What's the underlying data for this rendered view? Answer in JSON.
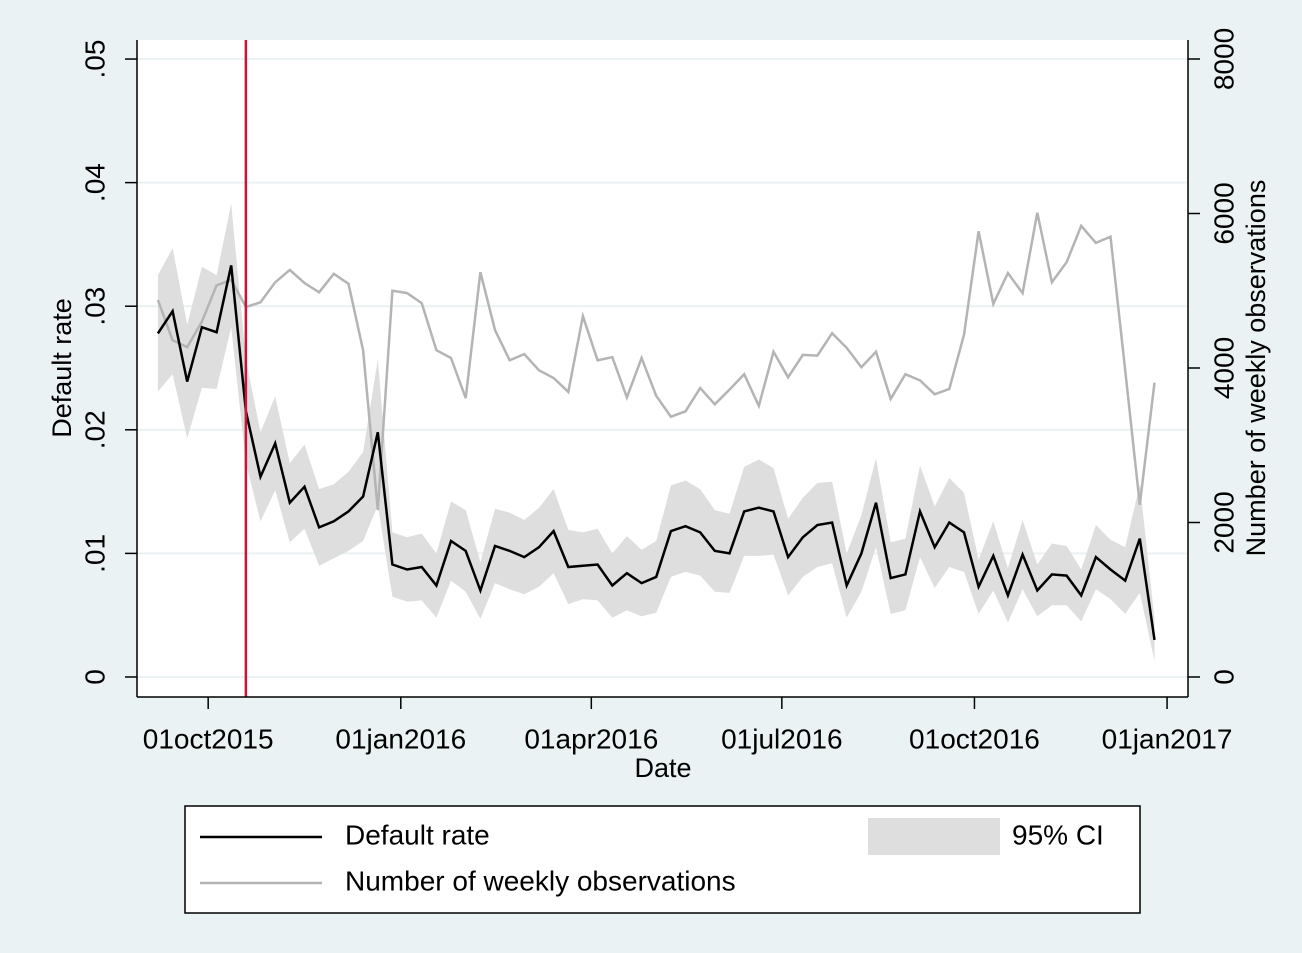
{
  "chart_data": {
    "type": "line",
    "xlabel": "Date",
    "ylabel": "Default rate",
    "y2label": "Number of weekly observations",
    "x": [
      20338,
      20345,
      20352,
      20359,
      20366,
      20373,
      20380,
      20387,
      20394,
      20401,
      20408,
      20415,
      20422,
      20429,
      20436,
      20443,
      20450,
      20457,
      20464,
      20471,
      20478,
      20485,
      20492,
      20499,
      20506,
      20513,
      20520,
      20527,
      20534,
      20541,
      20548,
      20555,
      20562,
      20569,
      20576,
      20583,
      20590,
      20597,
      20604,
      20611,
      20618,
      20625,
      20632,
      20639,
      20646,
      20653,
      20660,
      20667,
      20674,
      20681,
      20688,
      20695,
      20702,
      20709,
      20716,
      20723,
      20730,
      20737,
      20744,
      20751,
      20758,
      20765,
      20772,
      20779,
      20786,
      20793,
      20800,
      20807,
      20814
    ],
    "series": [
      {
        "name": "Default rate",
        "color": "#000000",
        "axis": "y",
        "values": [
          0.0278,
          0.0296,
          0.0239,
          0.0283,
          0.0279,
          0.0333,
          0.0215,
          0.0162,
          0.0189,
          0.0141,
          0.0154,
          0.0121,
          0.0126,
          0.0134,
          0.0146,
          0.0198,
          0.0091,
          0.0087,
          0.0089,
          0.0074,
          0.011,
          0.0102,
          0.007,
          0.0106,
          0.0102,
          0.0097,
          0.0105,
          0.0118,
          0.0089,
          0.009,
          0.0091,
          0.0074,
          0.0084,
          0.0076,
          0.0081,
          0.0118,
          0.0122,
          0.0117,
          0.0102,
          0.01,
          0.0134,
          0.0137,
          0.0134,
          0.0097,
          0.0113,
          0.0123,
          0.0125,
          0.0074,
          0.01,
          0.0141,
          0.008,
          0.0083,
          0.0134,
          0.0105,
          0.0125,
          0.0117,
          0.0073,
          0.0098,
          0.0066,
          0.0099,
          0.007,
          0.0083,
          0.0082,
          0.0066,
          0.0097,
          0.0087,
          0.0078,
          0.0112,
          0.003
        ]
      },
      {
        "name": "Number of weekly observations",
        "color": "#b4b4b4",
        "axis": "y2",
        "values": [
          4880,
          4360,
          4270,
          4600,
          5070,
          5140,
          4790,
          4850,
          5110,
          5270,
          5100,
          4980,
          5220,
          5090,
          4230,
          2160,
          5000,
          4970,
          4840,
          4230,
          4130,
          3610,
          5240,
          4490,
          4100,
          4180,
          3970,
          3870,
          3690,
          4670,
          4100,
          4140,
          3620,
          4130,
          3640,
          3370,
          3440,
          3740,
          3530,
          3720,
          3920,
          3510,
          4210,
          3880,
          4170,
          4160,
          4450,
          4260,
          4010,
          4210,
          3600,
          3920,
          3840,
          3660,
          3730,
          4430,
          5770,
          4830,
          5230,
          4970,
          6010,
          5110,
          5370,
          5840,
          5620,
          5700,
          3970,
          2230,
          3810
        ]
      }
    ],
    "ci": {
      "name": "95% CI",
      "color": "#dedede",
      "lower": [
        0.0231,
        0.0245,
        0.0193,
        0.0234,
        0.0233,
        0.0283,
        0.0173,
        0.0126,
        0.0151,
        0.0109,
        0.012,
        0.009,
        0.0096,
        0.0102,
        0.011,
        0.0139,
        0.0065,
        0.0061,
        0.0062,
        0.0048,
        0.0078,
        0.0069,
        0.0047,
        0.0076,
        0.0071,
        0.0067,
        0.0073,
        0.0084,
        0.0059,
        0.0063,
        0.0062,
        0.0048,
        0.0054,
        0.0049,
        0.0052,
        0.0081,
        0.0085,
        0.0082,
        0.0069,
        0.0068,
        0.0098,
        0.0098,
        0.0099,
        0.0066,
        0.0081,
        0.0089,
        0.0092,
        0.0048,
        0.0069,
        0.0105,
        0.0051,
        0.0054,
        0.0097,
        0.0072,
        0.0089,
        0.0085,
        0.0051,
        0.007,
        0.0044,
        0.0071,
        0.0049,
        0.0058,
        0.0058,
        0.0045,
        0.0071,
        0.0063,
        0.0051,
        0.0068,
        0.0013
      ],
      "upper": [
        0.0325,
        0.0347,
        0.0285,
        0.0332,
        0.0325,
        0.0383,
        0.0257,
        0.0198,
        0.0227,
        0.0173,
        0.0188,
        0.0152,
        0.0156,
        0.0166,
        0.0182,
        0.0257,
        0.0117,
        0.0113,
        0.0116,
        0.01,
        0.0142,
        0.0135,
        0.0093,
        0.0136,
        0.0133,
        0.0127,
        0.0137,
        0.0152,
        0.0119,
        0.0117,
        0.012,
        0.01,
        0.0114,
        0.0103,
        0.011,
        0.0155,
        0.0159,
        0.0152,
        0.0135,
        0.0132,
        0.017,
        0.0176,
        0.0169,
        0.0128,
        0.0145,
        0.0157,
        0.0158,
        0.01,
        0.0131,
        0.0177,
        0.0109,
        0.0112,
        0.0171,
        0.0138,
        0.0161,
        0.0149,
        0.0095,
        0.0126,
        0.0088,
        0.0127,
        0.0091,
        0.0108,
        0.0106,
        0.0087,
        0.0123,
        0.0111,
        0.0105,
        0.0156,
        0.0047
      ]
    },
    "xline": {
      "value": 20380,
      "color": "#c8143c"
    },
    "xlim": [
      20328,
      20830
    ],
    "xticks": [
      {
        "value": 20362,
        "label": "01oct2015"
      },
      {
        "value": 20454,
        "label": "01jan2016"
      },
      {
        "value": 20545,
        "label": "01apr2016"
      },
      {
        "value": 20636,
        "label": "01jul2016"
      },
      {
        "value": 20728,
        "label": "01oct2016"
      },
      {
        "value": 20820,
        "label": "01jan2017"
      }
    ],
    "ylim": [
      -0.00162,
      0.05154
    ],
    "yticks": [
      0,
      {
        "value": 0.01,
        "label": ".01"
      },
      {
        "value": 0.02,
        "label": ".02"
      },
      {
        "value": 0.03,
        "label": ".03"
      },
      {
        "value": 0.04,
        "label": ".04"
      },
      {
        "value": 0.05,
        "label": ".05"
      }
    ],
    "y2lim": [
      -259,
      8246
    ],
    "y2ticks": [
      0,
      2000,
      4000,
      6000,
      8000
    ],
    "grid": true,
    "legend": "bottom"
  }
}
